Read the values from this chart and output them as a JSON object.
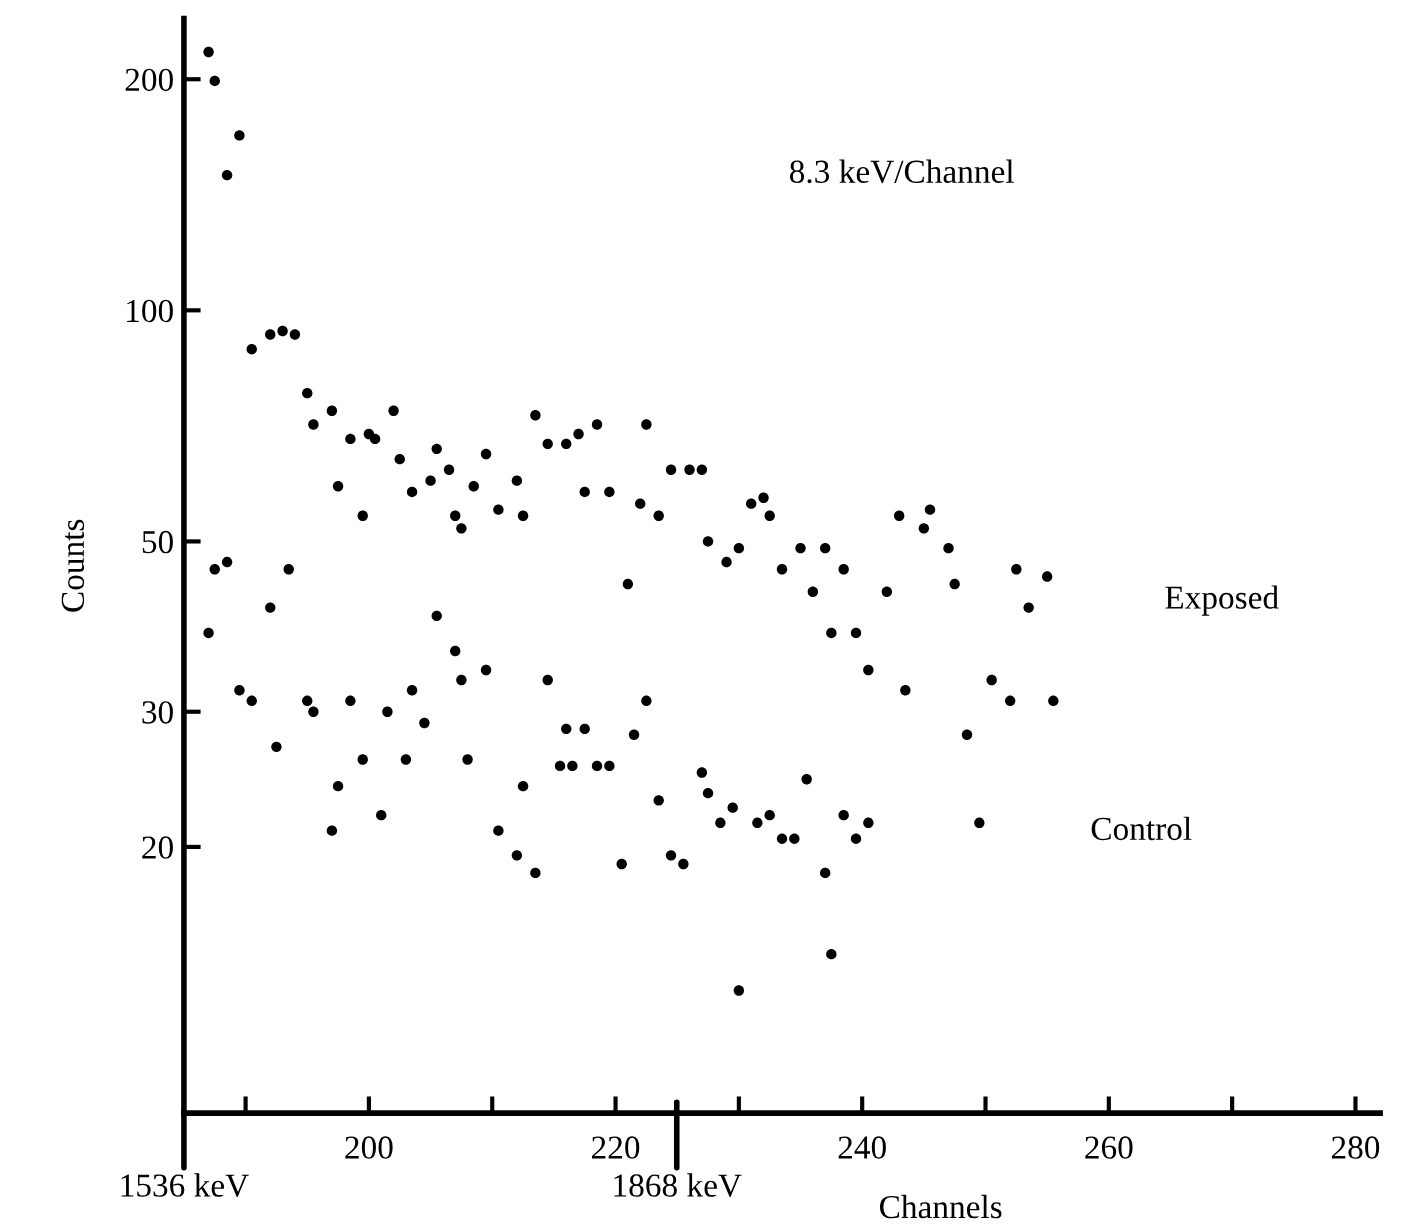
{
  "chart_data": {
    "type": "scatter",
    "xlabel": "Channels",
    "ylabel": "Counts",
    "annotations": [
      "8.3 keV/Channel",
      "1536 keV",
      "1868 keV"
    ],
    "log": "y",
    "marker": "circle",
    "grid": false,
    "legend": false,
    "xlim": [
      185,
      282
    ],
    "ylim": [
      9,
      240
    ],
    "xticks": [
      {
        "value": 190,
        "label": null
      },
      200,
      {
        "value": 210,
        "label": null
      },
      220,
      {
        "value": 230,
        "label": null
      },
      240,
      {
        "value": 250,
        "label": null
      },
      260,
      {
        "value": 270,
        "label": null
      },
      280
    ],
    "yticks": [
      20,
      30,
      50,
      100,
      200
    ],
    "series": [
      {
        "name": "Exposed",
        "color": "#000000",
        "x": [
          187,
          187.5,
          188.5,
          189.5,
          190.5,
          192,
          193,
          194,
          195,
          195.5,
          197,
          197.5,
          198.5,
          199.5,
          200,
          200.5,
          202,
          202.5,
          203.5,
          205,
          205.5,
          206.5,
          207,
          207.5,
          208.5,
          209.5,
          210.5,
          212,
          212.5,
          213.5,
          214.5,
          216,
          217,
          217.5,
          218.5,
          219.5,
          221,
          222,
          222.5,
          223.5,
          224.5,
          226,
          227,
          227.5,
          229,
          230,
          231,
          232,
          232.5,
          233.5,
          235,
          236,
          237,
          237.5,
          238.5,
          239.5,
          240.5,
          242,
          243,
          243.5,
          245,
          245.5,
          247,
          247.5,
          250.5,
          252,
          252.5,
          253.5,
          255,
          255.5
        ],
        "values": [
          217,
          199,
          150,
          169,
          89,
          93,
          94,
          93,
          78,
          71,
          74,
          59,
          68,
          54,
          69,
          68,
          74,
          64,
          58,
          60,
          66,
          62,
          54,
          52,
          59,
          65,
          55,
          60,
          54,
          73,
          67,
          67,
          69,
          58,
          71,
          58,
          44,
          56,
          71,
          54,
          62,
          62,
          62,
          50,
          47,
          49,
          56,
          57,
          54,
          46,
          49,
          43,
          49,
          38,
          46,
          38,
          34,
          43,
          54,
          32,
          52,
          55,
          49,
          44,
          33,
          31,
          46,
          41,
          45,
          31
        ]
      },
      {
        "name": "Control",
        "color": "#000000",
        "x": [
          187,
          187.5,
          188.5,
          189.5,
          190.5,
          192,
          192.5,
          193.5,
          195,
          195.5,
          197,
          197.5,
          198.5,
          199.5,
          201,
          201.5,
          203,
          203.5,
          204.5,
          205.5,
          207,
          207.5,
          208,
          209.5,
          210.5,
          212,
          212.5,
          213.5,
          214.5,
          215.5,
          216,
          216.5,
          217.5,
          218.5,
          219.5,
          220.5,
          221.5,
          222.5,
          223.5,
          224.5,
          225.5,
          227,
          227.5,
          228.5,
          229.5,
          230,
          231.5,
          232.5,
          233.5,
          234.5,
          235.5,
          237,
          237.5,
          238.5,
          239.5,
          240.5,
          248.5,
          249.5
        ],
        "values": [
          38,
          46,
          47,
          32,
          31,
          41,
          27,
          46,
          31,
          30,
          21,
          24,
          31,
          26,
          22,
          30,
          26,
          32,
          29,
          40,
          36,
          33,
          26,
          34,
          21,
          19.5,
          24,
          18.5,
          33,
          25.5,
          28.5,
          25.5,
          28.5,
          25.5,
          25.5,
          19,
          28,
          31,
          23,
          19.5,
          19,
          25,
          23.5,
          21.5,
          22.5,
          13,
          21.5,
          22,
          20.5,
          20.5,
          24.5,
          18.5,
          14.5,
          22,
          20.5,
          21.5,
          28,
          21.5
        ]
      }
    ]
  }
}
